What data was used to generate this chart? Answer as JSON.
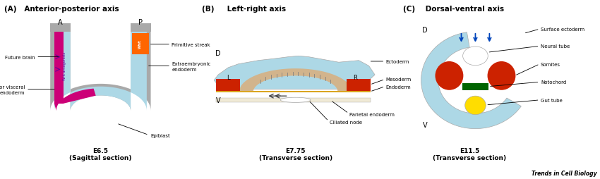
{
  "title_A": "(A)   Anterior-posterior axis",
  "title_B": "(B)     Left-right axis",
  "title_C": "(C)    Dorsal-ventral axis",
  "label_A": "E6.5\n(Sagittal section)",
  "label_B": "E7.75\n(Transverse section)",
  "label_C": "E11.5\n(Transverse section)",
  "color_light_blue": "#ADD8E6",
  "color_sky_blue": "#87CEEB",
  "color_gray": "#A9A9A9",
  "color_magenta": "#CC0077",
  "color_orange": "#FF6600",
  "color_red": "#CC2200",
  "color_brown": "#8B6914",
  "color_tan": "#D2B48C",
  "color_yellow": "#FFDD00",
  "color_green": "#228B22",
  "color_dark_green": "#006400",
  "color_navy": "#000080",
  "color_white": "#FFFFFF",
  "color_dark": "#111111",
  "color_purple": "#660099",
  "brand_text": "Trends in Cell Biology"
}
